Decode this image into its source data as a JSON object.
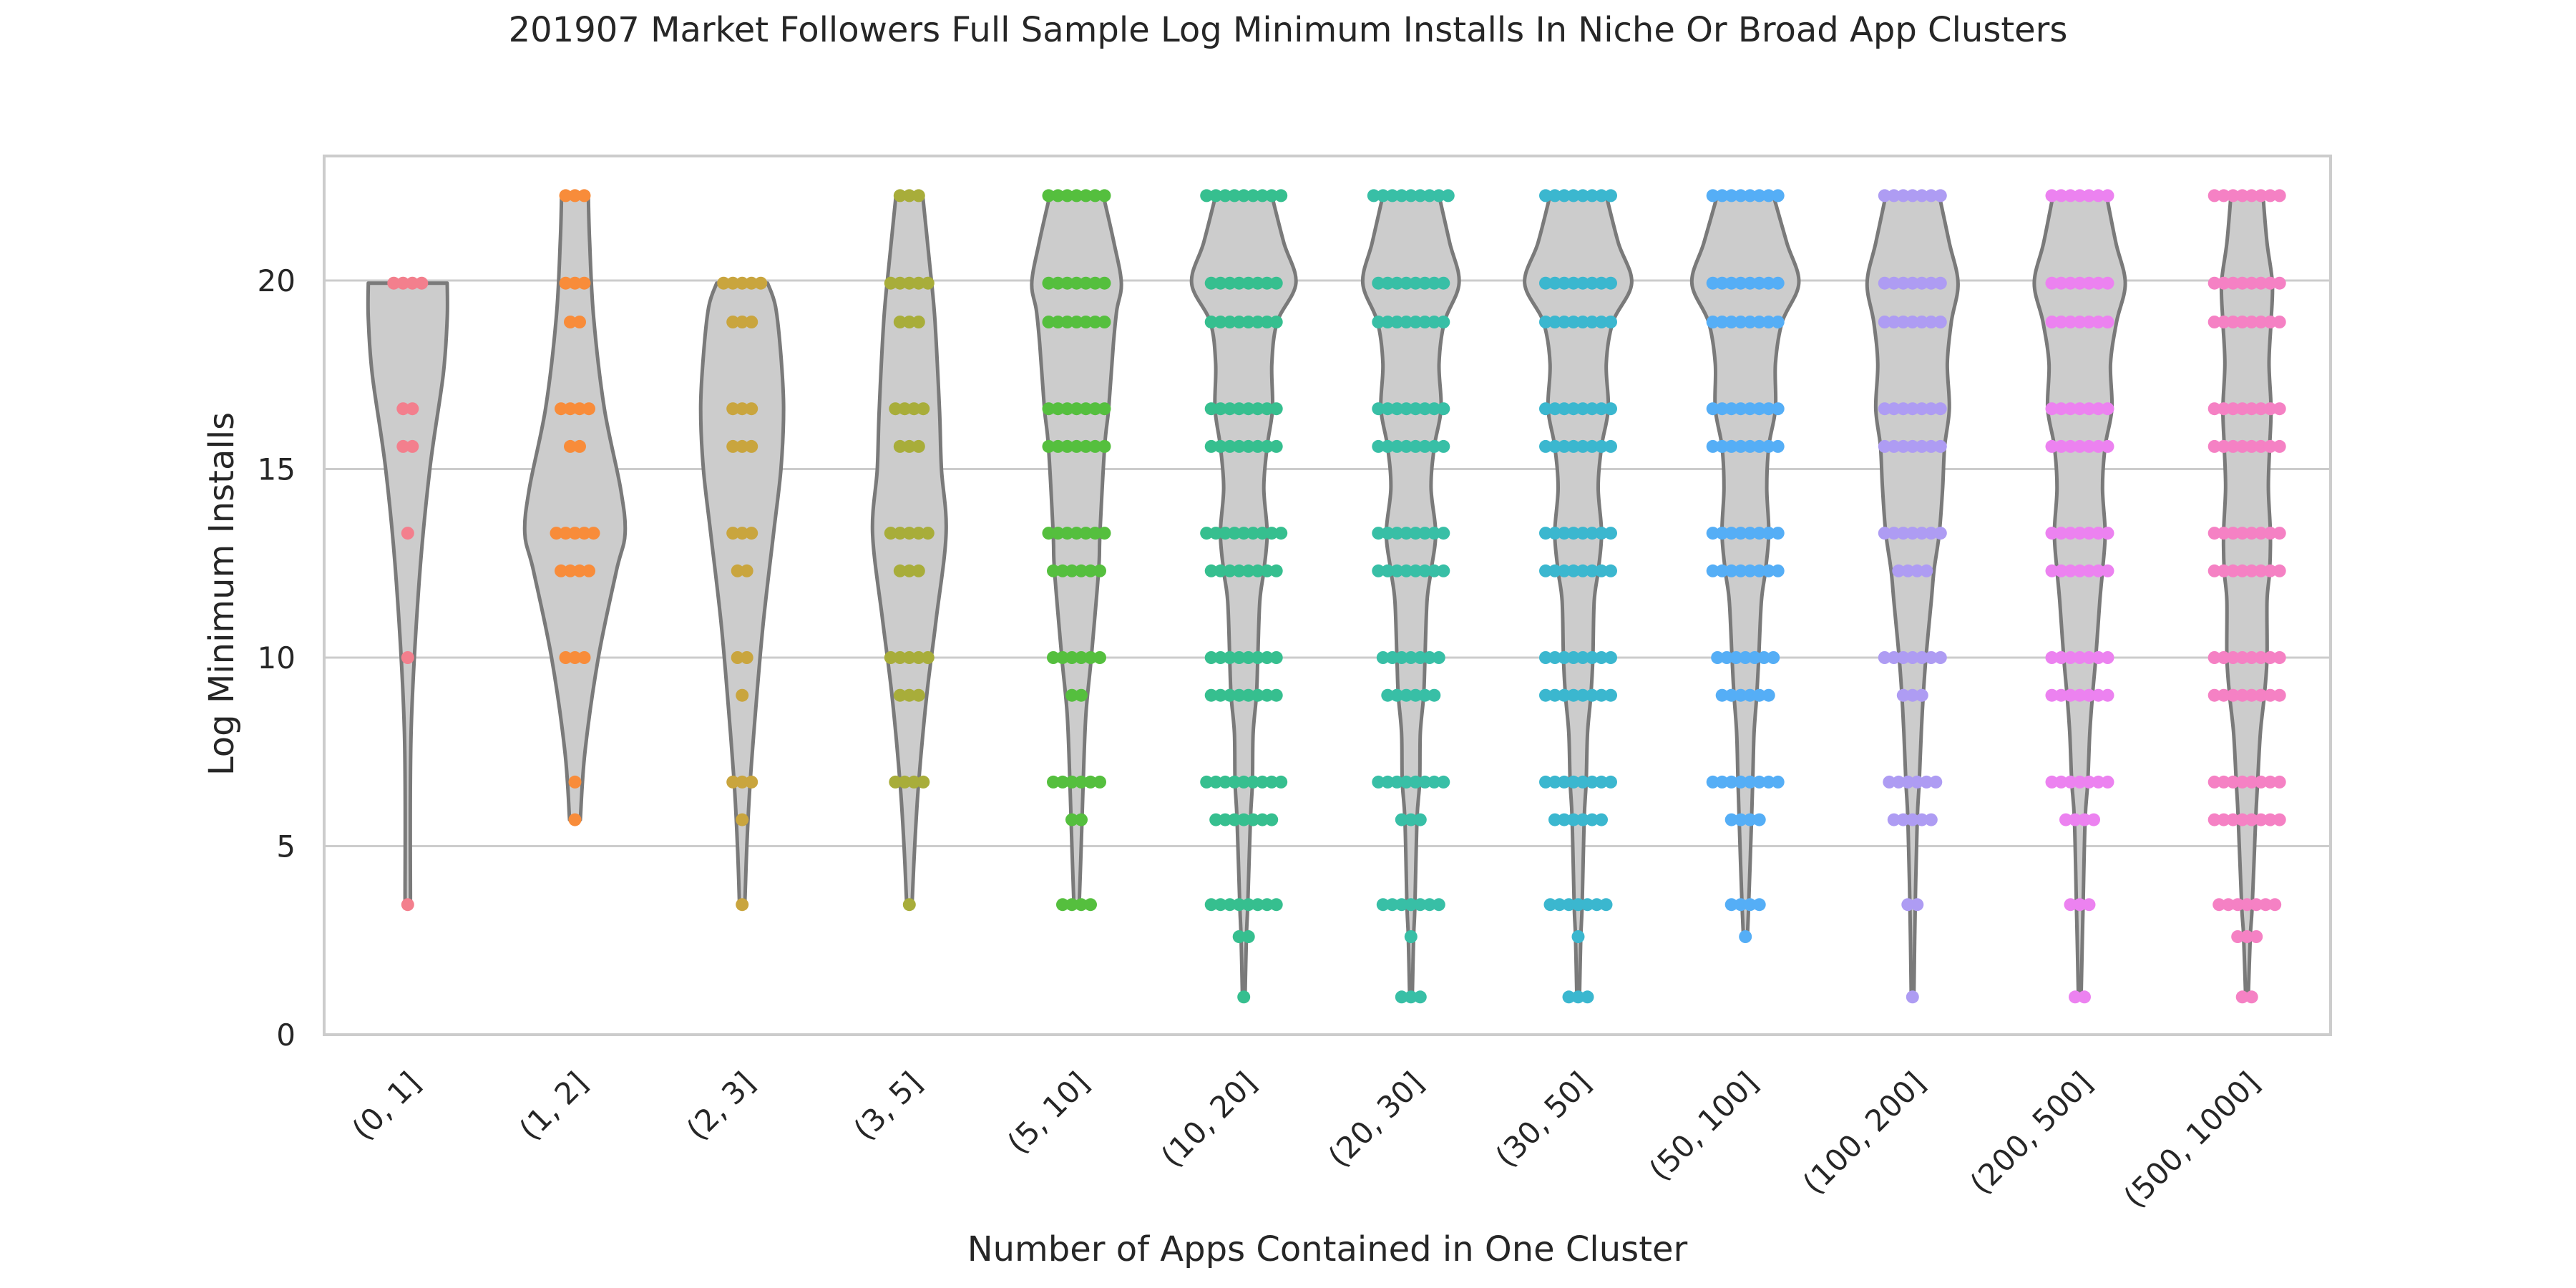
{
  "chart_data": {
    "type": "violin",
    "title": "201907 Market Followers Full Sample Log Minimum Installs In Niche Or Broad App Clusters",
    "xlabel": "Number of Apps Contained in One Cluster",
    "ylabel": "Log Minimum Installs",
    "ylim": [
      0,
      23.3
    ],
    "yticks": [
      0,
      5,
      10,
      15,
      20
    ],
    "grid": "horizontal",
    "violin_fill": "#cccccc",
    "violin_stroke": "#7a7a7a",
    "categories": [
      "(0, 1]",
      "(1, 2]",
      "(2, 3]",
      "(3, 5]",
      "(5, 10]",
      "(10, 20]",
      "(20, 30]",
      "(30, 50]",
      "(50, 100]",
      "(100, 200]",
      "(200, 500]",
      "(500, 1000]"
    ],
    "colors": [
      "#f37f8d",
      "#f88c3a",
      "#c9a53e",
      "#a8ad3a",
      "#55bf3e",
      "#36bf8f",
      "#38bfa6",
      "#3bb7cf",
      "#55aef6",
      "#ae9cf3",
      "#ec82f0",
      "#f581c4"
    ],
    "violins": [
      {
        "min": 3.45,
        "max": 19.93,
        "shape": [
          [
            3.45,
            0.04
          ],
          [
            8,
            0.05
          ],
          [
            12,
            0.17
          ],
          [
            15,
            0.33
          ],
          [
            17.5,
            0.53
          ],
          [
            19,
            0.59
          ],
          [
            19.93,
            0.59
          ]
        ]
      },
      {
        "min": 5.7,
        "max": 22.25,
        "shape": [
          [
            5.7,
            0.08
          ],
          [
            7.5,
            0.15
          ],
          [
            10,
            0.35
          ],
          [
            12.3,
            0.62
          ],
          [
            13.3,
            0.75
          ],
          [
            14.5,
            0.68
          ],
          [
            16.6,
            0.44
          ],
          [
            19,
            0.28
          ],
          [
            21,
            0.22
          ],
          [
            22.25,
            0.2
          ]
        ]
      },
      {
        "min": 3.45,
        "max": 19.93,
        "shape": [
          [
            3.45,
            0.04
          ],
          [
            5,
            0.07
          ],
          [
            6.7,
            0.12
          ],
          [
            9,
            0.22
          ],
          [
            11,
            0.32
          ],
          [
            13.3,
            0.47
          ],
          [
            15,
            0.58
          ],
          [
            16.6,
            0.62
          ],
          [
            18,
            0.58
          ],
          [
            19.3,
            0.5
          ],
          [
            19.93,
            0.38
          ]
        ]
      },
      {
        "min": 3.45,
        "max": 22.25,
        "shape": [
          [
            3.45,
            0.04
          ],
          [
            5,
            0.08
          ],
          [
            6.7,
            0.14
          ],
          [
            9,
            0.26
          ],
          [
            11,
            0.4
          ],
          [
            13.3,
            0.55
          ],
          [
            15,
            0.48
          ],
          [
            16.6,
            0.45
          ],
          [
            19,
            0.38
          ],
          [
            20.5,
            0.3
          ],
          [
            22.25,
            0.2
          ]
        ]
      },
      {
        "min": 3.45,
        "max": 22.25,
        "shape": [
          [
            3.45,
            0.04
          ],
          [
            5,
            0.07
          ],
          [
            6.7,
            0.1
          ],
          [
            8.5,
            0.14
          ],
          [
            10,
            0.22
          ],
          [
            12.3,
            0.33
          ],
          [
            13.3,
            0.35
          ],
          [
            15.6,
            0.42
          ],
          [
            16.6,
            0.48
          ],
          [
            18.3,
            0.55
          ],
          [
            19.2,
            0.6
          ],
          [
            19.93,
            0.67
          ],
          [
            21,
            0.56
          ],
          [
            22.25,
            0.4
          ]
        ]
      },
      {
        "min": 1.0,
        "max": 22.25,
        "shape": [
          [
            1,
            0.02
          ],
          [
            2.6,
            0.04
          ],
          [
            3.45,
            0.06
          ],
          [
            5.7,
            0.1
          ],
          [
            6.7,
            0.13
          ],
          [
            8,
            0.14
          ],
          [
            9,
            0.19
          ],
          [
            10,
            0.21
          ],
          [
            11.5,
            0.24
          ],
          [
            12.3,
            0.3
          ],
          [
            13.3,
            0.35
          ],
          [
            14.5,
            0.3
          ],
          [
            15.6,
            0.35
          ],
          [
            16.6,
            0.43
          ],
          [
            17.8,
            0.42
          ],
          [
            18.9,
            0.5
          ],
          [
            19.93,
            0.78
          ],
          [
            21,
            0.6
          ],
          [
            22.25,
            0.42
          ]
        ]
      },
      {
        "min": 1.0,
        "max": 22.25,
        "shape": [
          [
            1,
            0.02
          ],
          [
            2.6,
            0.04
          ],
          [
            3.45,
            0.06
          ],
          [
            5.7,
            0.09
          ],
          [
            6.7,
            0.13
          ],
          [
            8,
            0.14
          ],
          [
            9,
            0.19
          ],
          [
            10,
            0.21
          ],
          [
            11.5,
            0.24
          ],
          [
            12.3,
            0.3
          ],
          [
            13.3,
            0.37
          ],
          [
            14.5,
            0.3
          ],
          [
            15.6,
            0.35
          ],
          [
            16.6,
            0.45
          ],
          [
            17.8,
            0.42
          ],
          [
            18.9,
            0.5
          ],
          [
            19.93,
            0.72
          ],
          [
            21,
            0.58
          ],
          [
            22.25,
            0.42
          ]
        ]
      },
      {
        "min": 1.0,
        "max": 22.25,
        "shape": [
          [
            1,
            0.02
          ],
          [
            2.6,
            0.04
          ],
          [
            3.45,
            0.06
          ],
          [
            5.7,
            0.09
          ],
          [
            6.7,
            0.12
          ],
          [
            8,
            0.14
          ],
          [
            9,
            0.19
          ],
          [
            10,
            0.22
          ],
          [
            11.5,
            0.24
          ],
          [
            12.3,
            0.3
          ],
          [
            13.3,
            0.35
          ],
          [
            14.5,
            0.3
          ],
          [
            15.6,
            0.35
          ],
          [
            16.6,
            0.45
          ],
          [
            17.8,
            0.42
          ],
          [
            18.9,
            0.52
          ],
          [
            19.93,
            0.8
          ],
          [
            21,
            0.6
          ],
          [
            22.25,
            0.42
          ]
        ]
      },
      {
        "min": 2.6,
        "max": 22.25,
        "shape": [
          [
            2.6,
            0.03
          ],
          [
            3.45,
            0.05
          ],
          [
            5,
            0.08
          ],
          [
            6.7,
            0.11
          ],
          [
            8,
            0.13
          ],
          [
            9,
            0.17
          ],
          [
            10,
            0.2
          ],
          [
            11.5,
            0.24
          ],
          [
            12.3,
            0.3
          ],
          [
            13.3,
            0.35
          ],
          [
            14.5,
            0.32
          ],
          [
            15.6,
            0.35
          ],
          [
            16.6,
            0.45
          ],
          [
            17.8,
            0.45
          ],
          [
            18.9,
            0.55
          ],
          [
            19.93,
            0.8
          ],
          [
            21,
            0.62
          ],
          [
            22.25,
            0.42
          ]
        ]
      },
      {
        "min": 1.0,
        "max": 22.25,
        "shape": [
          [
            1,
            0.02
          ],
          [
            3.45,
            0.04
          ],
          [
            5.7,
            0.07
          ],
          [
            6.7,
            0.1
          ],
          [
            8,
            0.13
          ],
          [
            9,
            0.16
          ],
          [
            10,
            0.2
          ],
          [
            11.5,
            0.28
          ],
          [
            12.3,
            0.32
          ],
          [
            13.3,
            0.4
          ],
          [
            14.5,
            0.45
          ],
          [
            15.6,
            0.48
          ],
          [
            16.6,
            0.55
          ],
          [
            17.8,
            0.52
          ],
          [
            18.9,
            0.58
          ],
          [
            19.93,
            0.68
          ],
          [
            21,
            0.55
          ],
          [
            22.25,
            0.4
          ]
        ]
      },
      {
        "min": 1.0,
        "max": 22.25,
        "shape": [
          [
            1,
            0.02
          ],
          [
            3.45,
            0.05
          ],
          [
            5.7,
            0.08
          ],
          [
            6.7,
            0.12
          ],
          [
            8,
            0.15
          ],
          [
            9,
            0.19
          ],
          [
            10,
            0.24
          ],
          [
            11.5,
            0.3
          ],
          [
            12.3,
            0.34
          ],
          [
            13.3,
            0.38
          ],
          [
            14.5,
            0.34
          ],
          [
            15.6,
            0.38
          ],
          [
            16.6,
            0.48
          ],
          [
            17.8,
            0.46
          ],
          [
            18.9,
            0.55
          ],
          [
            19.93,
            0.68
          ],
          [
            21,
            0.54
          ],
          [
            22.25,
            0.4
          ]
        ]
      },
      {
        "min": 1.0,
        "max": 22.25,
        "shape": [
          [
            1,
            0.02
          ],
          [
            2.6,
            0.05
          ],
          [
            3.45,
            0.08
          ],
          [
            5.7,
            0.13
          ],
          [
            6.7,
            0.16
          ],
          [
            8,
            0.2
          ],
          [
            9,
            0.26
          ],
          [
            10,
            0.3
          ],
          [
            11.5,
            0.3
          ],
          [
            12.3,
            0.34
          ],
          [
            13.3,
            0.35
          ],
          [
            14.5,
            0.32
          ],
          [
            15.6,
            0.34
          ],
          [
            16.6,
            0.36
          ],
          [
            17.8,
            0.33
          ],
          [
            18.9,
            0.36
          ],
          [
            19.93,
            0.38
          ],
          [
            21,
            0.3
          ],
          [
            22.25,
            0.24
          ]
        ]
      }
    ],
    "points": [
      {
        "y": [
          3.45,
          10.0,
          13.3,
          15.6,
          16.6,
          19.93
        ],
        "counts": [
          1,
          1,
          1,
          2,
          2,
          4
        ]
      },
      {
        "y": [
          5.7,
          6.7,
          10.0,
          12.3,
          13.3,
          15.6,
          16.6,
          18.9,
          19.93,
          22.25
        ],
        "counts": [
          1,
          1,
          3,
          4,
          5,
          2,
          4,
          2,
          3,
          3
        ]
      },
      {
        "y": [
          3.45,
          5.7,
          6.7,
          9.0,
          10.0,
          12.3,
          13.3,
          15.6,
          16.6,
          18.9,
          19.93
        ],
        "counts": [
          1,
          1,
          3,
          1,
          2,
          2,
          3,
          3,
          3,
          3,
          5
        ]
      },
      {
        "y": [
          3.45,
          6.7,
          9.0,
          10.0,
          12.3,
          13.3,
          15.6,
          16.6,
          18.9,
          19.93,
          22.25
        ],
        "counts": [
          1,
          4,
          3,
          5,
          3,
          5,
          3,
          4,
          3,
          5,
          3
        ]
      },
      {
        "y": [
          3.45,
          5.7,
          6.7,
          9.0,
          10.0,
          12.3,
          13.3,
          15.6,
          16.6,
          18.9,
          19.93,
          22.25
        ],
        "counts": [
          4,
          2,
          6,
          2,
          6,
          6,
          7,
          7,
          7,
          7,
          7,
          7
        ]
      },
      {
        "y": [
          1.0,
          2.6,
          3.45,
          5.7,
          6.7,
          9.0,
          10.0,
          12.3,
          13.3,
          15.6,
          16.6,
          18.9,
          19.93,
          22.25
        ],
        "counts": [
          1,
          2,
          8,
          7,
          9,
          8,
          8,
          8,
          9,
          8,
          8,
          8,
          8,
          9
        ]
      },
      {
        "y": [
          1.0,
          2.6,
          3.45,
          5.7,
          6.7,
          9.0,
          10.0,
          12.3,
          13.3,
          15.6,
          16.6,
          18.9,
          19.93,
          22.25
        ],
        "counts": [
          3,
          1,
          7,
          3,
          8,
          6,
          7,
          8,
          8,
          8,
          8,
          8,
          8,
          9
        ]
      },
      {
        "y": [
          1.0,
          2.6,
          3.45,
          5.7,
          6.7,
          9.0,
          10.0,
          12.3,
          13.3,
          15.6,
          16.6,
          18.9,
          19.93,
          22.25
        ],
        "counts": [
          3,
          1,
          7,
          6,
          8,
          8,
          8,
          8,
          8,
          8,
          8,
          8,
          8,
          8
        ]
      },
      {
        "y": [
          2.6,
          3.45,
          5.7,
          6.7,
          9.0,
          10.0,
          12.3,
          13.3,
          15.6,
          16.6,
          18.9,
          19.93,
          22.25
        ],
        "counts": [
          1,
          4,
          4,
          8,
          6,
          7,
          8,
          8,
          8,
          8,
          8,
          8,
          8
        ]
      },
      {
        "y": [
          1.0,
          3.45,
          5.7,
          6.7,
          9.0,
          10.0,
          12.3,
          13.3,
          15.6,
          16.6,
          18.9,
          19.93,
          22.25
        ],
        "counts": [
          1,
          2,
          5,
          6,
          3,
          7,
          4,
          7,
          7,
          7,
          7,
          7,
          7
        ]
      },
      {
        "y": [
          1.0,
          3.45,
          5.7,
          6.7,
          9.0,
          10.0,
          12.3,
          13.3,
          15.6,
          16.6,
          18.9,
          19.93,
          22.25
        ],
        "counts": [
          2,
          3,
          4,
          7,
          7,
          7,
          7,
          7,
          7,
          7,
          7,
          7,
          7
        ]
      },
      {
        "y": [
          1.0,
          2.6,
          3.45,
          5.7,
          6.7,
          9.0,
          10.0,
          12.3,
          13.3,
          15.6,
          16.6,
          18.9,
          19.93,
          22.25
        ],
        "counts": [
          2,
          3,
          7,
          8,
          8,
          8,
          8,
          8,
          8,
          8,
          8,
          8,
          8,
          8
        ]
      }
    ]
  }
}
